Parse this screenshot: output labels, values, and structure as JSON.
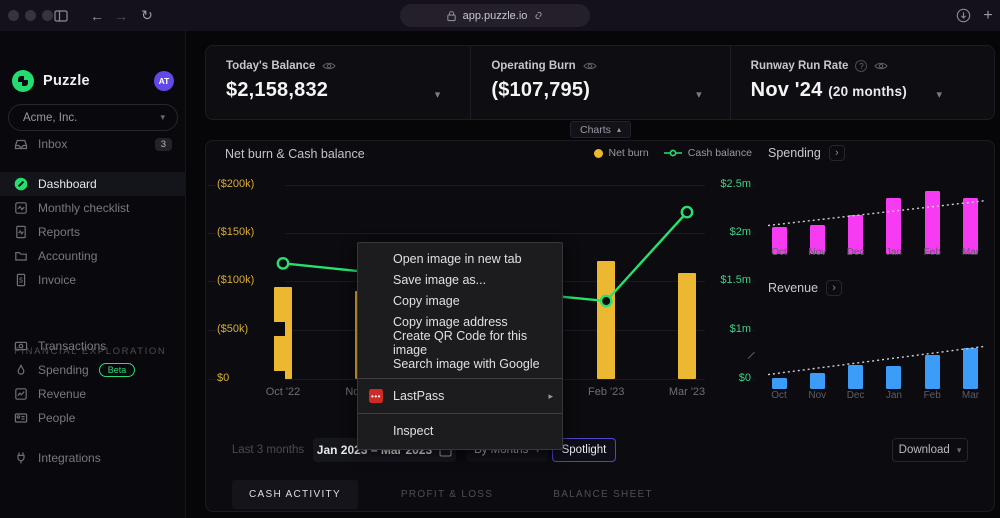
{
  "browser": {
    "url": "app.puzzle.io"
  },
  "sidebar": {
    "app_name": "Puzzle",
    "avatar_initials": "AT",
    "company": "Acme, Inc.",
    "inbox": {
      "label": "Inbox",
      "badge": "3"
    },
    "items_main": [
      {
        "label": "Dashboard",
        "active": true
      },
      {
        "label": "Monthly checklist"
      },
      {
        "label": "Reports"
      },
      {
        "label": "Accounting"
      },
      {
        "label": "Invoice"
      }
    ],
    "section_label": "FINANCIAL EXPLORATION",
    "items_financial": [
      {
        "label": "Transactions"
      },
      {
        "label": "Spending",
        "badge": "Beta"
      },
      {
        "label": "Revenue"
      },
      {
        "label": "People"
      }
    ],
    "items_bottom": [
      {
        "label": "Integrations"
      }
    ]
  },
  "metrics": [
    {
      "label": "Today's Balance",
      "value": "$2,158,832"
    },
    {
      "label": "Operating Burn",
      "value": "($107,795)"
    },
    {
      "label": "Runway Run Rate",
      "value": "Nov '24",
      "value_note": "(20 months)"
    }
  ],
  "charts_toggle_label": "Charts",
  "panel": {
    "main_chart_title": "Net burn & Cash balance",
    "legend": [
      {
        "label": "Net burn",
        "color": "#ecb731"
      },
      {
        "label": "Cash balance",
        "color": "#26e170"
      }
    ],
    "spending_title": "Spending",
    "revenue_title": "Revenue"
  },
  "chart_data": [
    {
      "id": "net_burn_cash_balance",
      "type": "combo_bar_line",
      "title": "Net burn & Cash balance",
      "categories": [
        "Oct '22",
        "Nov '22",
        null,
        null,
        "Feb '23",
        "Mar '23"
      ],
      "note": "Dec '22 / Jan '23 bars, labels and line points are occluded by the open context menu",
      "series": [
        {
          "name": "Net burn",
          "type": "bar",
          "axis": "left",
          "unit": "thousand USD (displayed negative)",
          "values": [
            95,
            91,
            null,
            null,
            121,
            109
          ]
        },
        {
          "name": "Cash balance",
          "type": "line",
          "axis": "right",
          "unit": "million USD",
          "values": [
            1.69,
            null,
            null,
            null,
            1.3,
            2.22
          ]
        }
      ],
      "left_axis_ticks": [
        "($200k)",
        "($150k)",
        "($100k)",
        "($50k)",
        "$0"
      ],
      "right_axis_ticks": [
        "$2.5m",
        "$2m",
        "$1.5m",
        "$1m",
        "$0"
      ],
      "grid": true,
      "legend_position": "top-right"
    },
    {
      "id": "spending_mini",
      "type": "bar",
      "title": "Spending",
      "categories": [
        "Oct",
        "Nov",
        "Dec",
        "Jan",
        "Feb",
        "Mar"
      ],
      "values_pct_of_plot": [
        28,
        31,
        41,
        59,
        66,
        59
      ],
      "trendline_pct": [
        30,
        56
      ],
      "color": "#f73bf2"
    },
    {
      "id": "revenue_mini",
      "type": "bar",
      "title": "Revenue",
      "categories": [
        "Oct",
        "Nov",
        "Dec",
        "Jan",
        "Feb",
        "Mar"
      ],
      "values_pct_of_plot": [
        13,
        19,
        28,
        27,
        40,
        48
      ],
      "trendline_pct": [
        17,
        50
      ],
      "color": "#3b9df7"
    }
  ],
  "controls": {
    "range_shortcut": "Last 3 months",
    "date_range": "Jan 2023 – Mar 2023",
    "group_by": "By Months",
    "spotlight": "Spotlight",
    "download": "Download"
  },
  "tabs": [
    {
      "label": "CASH ACTIVITY",
      "active": true
    },
    {
      "label": "PROFIT & LOSS"
    },
    {
      "label": "BALANCE SHEET"
    }
  ],
  "context_menu": {
    "items": [
      {
        "label": "Open image in new tab"
      },
      {
        "label": "Save image as..."
      },
      {
        "label": "Copy image"
      },
      {
        "label": "Copy image address"
      },
      {
        "label": "Create QR Code for this image"
      },
      {
        "label": "Search image with Google"
      },
      {
        "separator": true
      },
      {
        "label": "LastPass",
        "icon": "lastpass-icon",
        "submenu": true
      },
      {
        "separator": true
      },
      {
        "label": "Inspect"
      }
    ]
  },
  "colors": {
    "net_burn": "#ecb731",
    "cash_balance": "#26e170",
    "spending": "#f73bf2",
    "revenue": "#3b9df7",
    "accent_purple": "#6348e8",
    "axis_left_text": "#d9ad33",
    "axis_right_text": "#41cf8c"
  }
}
